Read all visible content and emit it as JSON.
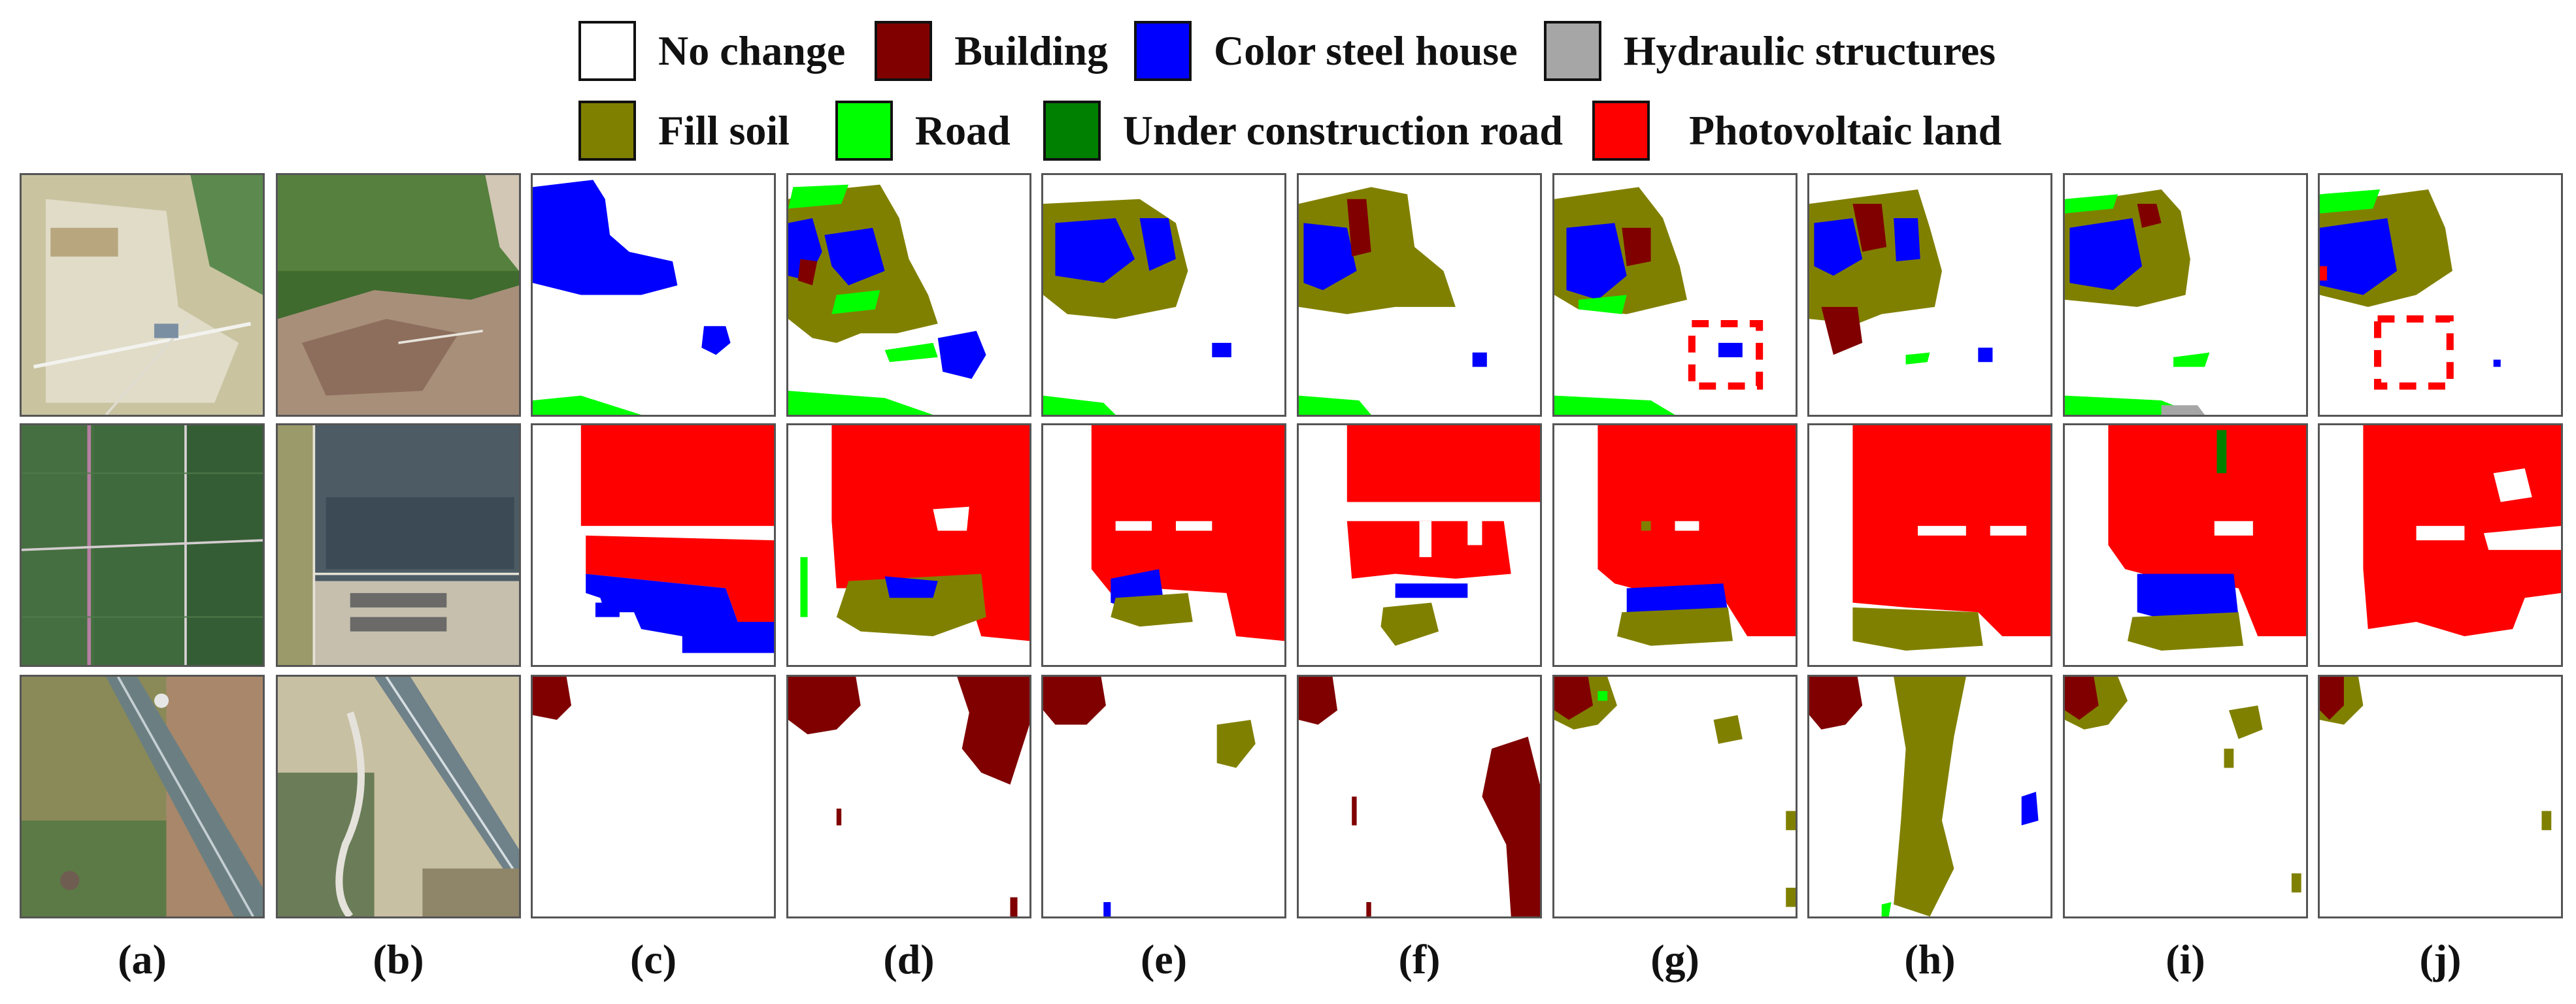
{
  "legend": {
    "items": [
      {
        "label": "No change",
        "color": "#ffffff"
      },
      {
        "label": "Building",
        "color": "#800000"
      },
      {
        "label": "Color steel house",
        "color": "#0000ff"
      },
      {
        "label": "Hydraulic structures",
        "color": "#a6a6a6"
      },
      {
        "label": "Fill soil",
        "color": "#808000"
      },
      {
        "label": "Road",
        "color": "#00ff00"
      },
      {
        "label": "Under construction road",
        "color": "#008000"
      },
      {
        "label": "Photovoltaic land",
        "color": "#ff0000"
      }
    ]
  },
  "columns": [
    {
      "label": "(a)"
    },
    {
      "label": "(b)"
    },
    {
      "label": "(c)"
    },
    {
      "label": "(d)"
    },
    {
      "label": "(e)"
    },
    {
      "label": "(f)"
    },
    {
      "label": "(g)"
    },
    {
      "label": "(h)"
    },
    {
      "label": "(i)"
    },
    {
      "label": "(j)"
    }
  ]
}
